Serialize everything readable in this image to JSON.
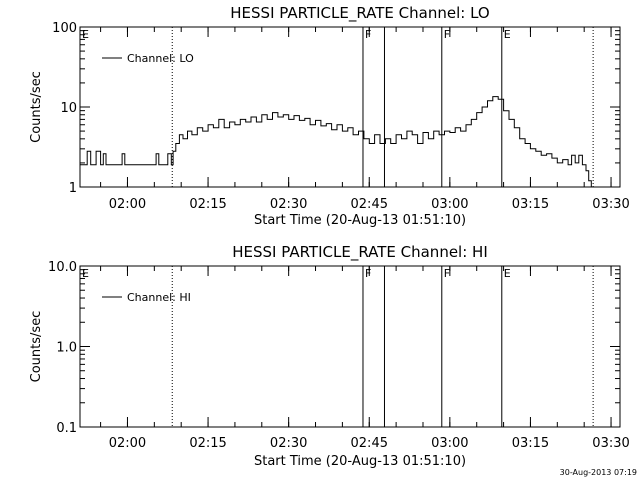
{
  "footer_date": "30-Aug-2013 07:19",
  "chart_data": [
    {
      "type": "line",
      "title": "HESSI PARTICLE_RATE Channel: LO",
      "xlabel": "Start Time (20-Aug-13 01:51:10)",
      "ylabel": "Counts/sec",
      "ylog": true,
      "ylim": [
        1,
        100
      ],
      "xlim": [
        "01:51:10",
        "03:31:40"
      ],
      "y_tick_labels": [
        "1",
        "10",
        "100"
      ],
      "x_tick_labels": [
        "02:00",
        "02:15",
        "02:30",
        "02:45",
        "03:00",
        "03:15",
        "03:30"
      ],
      "legend": "Channel: LO",
      "legend_position": "top-left",
      "markers": [
        {
          "time": "01:51:10",
          "label": "E",
          "style": "none"
        },
        {
          "time": "02:08:20",
          "label": "",
          "style": "dotted"
        },
        {
          "time": "02:43:50",
          "label": "F",
          "style": "solid"
        },
        {
          "time": "02:47:50",
          "label": "",
          "style": "solid"
        },
        {
          "time": "02:58:30",
          "label": "F",
          "style": "solid"
        },
        {
          "time": "03:09:40",
          "label": "E",
          "style": "solid"
        },
        {
          "time": "03:26:40",
          "label": "",
          "style": "dotted"
        }
      ],
      "series": [
        {
          "name": "Channel: LO",
          "x": [
            "01:51:10",
            "01:52:30",
            "01:53:10",
            "01:54:10",
            "01:55:00",
            "01:55:30",
            "01:56:00",
            "01:58:30",
            "01:59:00",
            "01:59:30",
            "02:04:50",
            "02:05:20",
            "02:05:50",
            "02:06:30",
            "02:07:30",
            "02:08:10",
            "02:08:30",
            "02:09:00",
            "02:09:40",
            "02:10:20",
            "02:11:10",
            "02:12:00",
            "02:13:00",
            "02:14:00",
            "02:15:00",
            "02:16:00",
            "02:17:00",
            "02:18:00",
            "02:19:00",
            "02:20:00",
            "02:21:00",
            "02:22:00",
            "02:23:00",
            "02:24:00",
            "02:25:00",
            "02:26:00",
            "02:27:00",
            "02:28:00",
            "02:29:00",
            "02:30:00",
            "02:31:00",
            "02:32:00",
            "02:33:00",
            "02:34:00",
            "02:35:00",
            "02:36:00",
            "02:37:00",
            "02:38:00",
            "02:39:00",
            "02:40:00",
            "02:41:00",
            "02:42:00",
            "02:43:00",
            "02:44:00",
            "02:45:00",
            "02:46:00",
            "02:47:00",
            "02:48:00",
            "02:49:00",
            "02:50:00",
            "02:51:00",
            "02:52:00",
            "02:53:00",
            "02:54:00",
            "02:55:00",
            "02:56:00",
            "02:57:00",
            "02:58:00",
            "02:59:00",
            "03:00:00",
            "03:01:00",
            "03:02:00",
            "03:03:00",
            "03:04:00",
            "03:05:00",
            "03:06:00",
            "03:07:00",
            "03:08:00",
            "03:09:00",
            "03:10:00",
            "03:11:00",
            "03:12:00",
            "03:13:00",
            "03:14:00",
            "03:15:00",
            "03:16:00",
            "03:17:00",
            "03:18:00",
            "03:19:00",
            "03:20:00",
            "03:21:00",
            "03:22:00",
            "03:22:40",
            "03:23:20",
            "03:24:00",
            "03:24:40",
            "03:25:20",
            "03:25:50",
            "03:26:20"
          ],
          "y": [
            1.9,
            2.8,
            1.9,
            2.8,
            1.9,
            2.6,
            1.9,
            1.9,
            2.6,
            1.9,
            1.9,
            2.6,
            1.9,
            1.9,
            2.6,
            1.9,
            2.8,
            3.5,
            4.5,
            4.0,
            5.0,
            4.5,
            5.5,
            5.0,
            6.0,
            5.5,
            7.0,
            5.5,
            6.5,
            6.0,
            7.0,
            6.5,
            7.5,
            6.5,
            8.0,
            7.0,
            8.5,
            7.5,
            8.0,
            7.0,
            7.8,
            6.8,
            7.2,
            6.0,
            6.8,
            5.8,
            6.2,
            5.2,
            6.0,
            5.0,
            5.5,
            4.5,
            5.0,
            4.0,
            3.5,
            4.5,
            3.5,
            4.0,
            3.5,
            4.5,
            4.0,
            5.0,
            4.5,
            3.5,
            4.8,
            4.0,
            5.0,
            4.5,
            5.0,
            4.8,
            5.5,
            5.0,
            6.0,
            7.0,
            8.5,
            10.0,
            12.0,
            13.5,
            12.5,
            9.0,
            7.0,
            5.5,
            4.0,
            3.5,
            3.0,
            2.8,
            2.5,
            2.6,
            2.3,
            2.0,
            2.2,
            1.9,
            2.5,
            2.0,
            2.5,
            1.9,
            1.6,
            1.2,
            1.0
          ]
        }
      ]
    },
    {
      "type": "line",
      "title": "HESSI PARTICLE_RATE Channel: HI",
      "xlabel": "Start Time (20-Aug-13 01:51:10)",
      "ylabel": "Counts/sec",
      "ylog": true,
      "ylim": [
        0.1,
        10
      ],
      "xlim": [
        "01:51:10",
        "03:31:40"
      ],
      "y_tick_labels": [
        "0.1",
        "1.0",
        "10.0"
      ],
      "x_tick_labels": [
        "02:00",
        "02:15",
        "02:30",
        "02:45",
        "03:00",
        "03:15",
        "03:30"
      ],
      "legend": "Channel: HI",
      "legend_position": "top-left",
      "markers": [
        {
          "time": "01:51:10",
          "label": "E",
          "style": "none"
        },
        {
          "time": "02:08:20",
          "label": "",
          "style": "dotted"
        },
        {
          "time": "02:43:50",
          "label": "F",
          "style": "solid"
        },
        {
          "time": "02:47:50",
          "label": "",
          "style": "solid"
        },
        {
          "time": "02:58:30",
          "label": "F",
          "style": "solid"
        },
        {
          "time": "03:09:40",
          "label": "E",
          "style": "solid"
        },
        {
          "time": "03:26:40",
          "label": "",
          "style": "dotted"
        }
      ],
      "series": [
        {
          "name": "Channel: HI",
          "x": [],
          "y": []
        }
      ]
    }
  ]
}
